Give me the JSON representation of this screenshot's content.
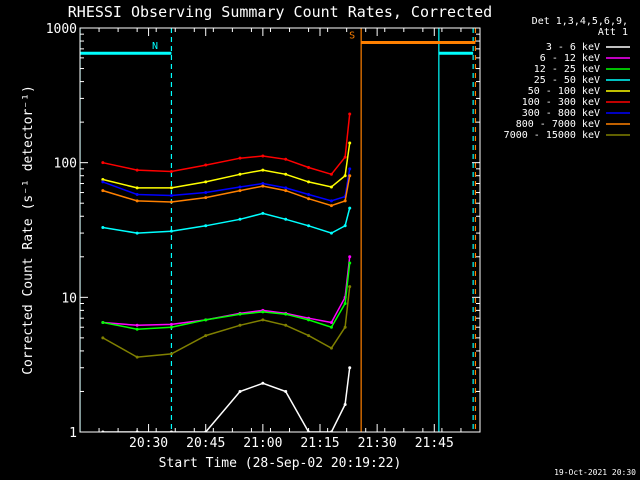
{
  "chart_data": {
    "type": "line",
    "title": "RHESSI Observing Summary Count Rates, Corrected",
    "xlabel": "Start Time (28-Sep-02 20:19:22)",
    "ylabel": "Corrected Count Rate (s⁻¹ detector⁻¹)",
    "yscale": "log",
    "ylim": [
      1,
      1000
    ],
    "xlim_min": [
      20.2,
      21.95
    ],
    "x_ticks": [
      20.5,
      20.75,
      21.0,
      21.25,
      21.5,
      21.75
    ],
    "x_tick_labels": [
      "20:30",
      "20:45",
      "21:00",
      "21:15",
      "21:30",
      "21:45"
    ],
    "y_ticks": [
      1,
      10,
      100,
      1000
    ],
    "y_tick_labels": [
      "1",
      "10",
      "100",
      "1000"
    ],
    "legend_header": [
      "Det 1,3,4,5,6,9,",
      "Att 1"
    ],
    "legend_placement": "right",
    "grid": false,
    "series": [
      {
        "name": "3 - 6 keV",
        "color": "#ffffff",
        "x": [
          20.3,
          20.45,
          20.6,
          20.75,
          20.9,
          21.0,
          21.1,
          21.2,
          21.3,
          21.36,
          21.38
        ],
        "y": [
          1,
          1,
          1,
          1,
          2,
          2.3,
          2,
          1,
          1,
          1.6,
          3
        ]
      },
      {
        "name": "6 - 12 keV",
        "color": "#ff00ff",
        "x": [
          20.3,
          20.45,
          20.6,
          20.75,
          20.9,
          21.0,
          21.1,
          21.2,
          21.3,
          21.36,
          21.38
        ],
        "y": [
          6.5,
          6.2,
          6.3,
          6.8,
          7.6,
          8.0,
          7.6,
          7.0,
          6.5,
          10,
          20
        ]
      },
      {
        "name": "12 - 25 keV",
        "color": "#00ff00",
        "x": [
          20.3,
          20.45,
          20.6,
          20.75,
          20.9,
          21.0,
          21.1,
          21.2,
          21.3,
          21.36,
          21.38
        ],
        "y": [
          6.5,
          5.8,
          6.0,
          6.8,
          7.5,
          7.8,
          7.5,
          6.8,
          6.0,
          9,
          18
        ]
      },
      {
        "name": "25 - 50 keV",
        "color": "#00ffff",
        "x": [
          20.3,
          20.45,
          20.6,
          20.75,
          20.9,
          21.0,
          21.1,
          21.2,
          21.3,
          21.36,
          21.38
        ],
        "y": [
          33,
          30,
          31,
          34,
          38,
          42,
          38,
          34,
          30,
          34,
          46
        ]
      },
      {
        "name": "50 - 100 keV",
        "color": "#ffff00",
        "x": [
          20.3,
          20.45,
          20.6,
          20.75,
          20.9,
          21.0,
          21.1,
          21.2,
          21.3,
          21.36,
          21.38
        ],
        "y": [
          75,
          65,
          65,
          72,
          82,
          88,
          82,
          72,
          66,
          80,
          140
        ]
      },
      {
        "name": "100 - 300 keV",
        "color": "#ff0000",
        "x": [
          20.3,
          20.45,
          20.6,
          20.75,
          20.9,
          21.0,
          21.1,
          21.2,
          21.3,
          21.36,
          21.38
        ],
        "y": [
          100,
          88,
          86,
          96,
          108,
          112,
          106,
          92,
          82,
          110,
          230
        ]
      },
      {
        "name": "300 - 800 keV",
        "color": "#0000ff",
        "x": [
          20.3,
          20.45,
          20.6,
          20.75,
          20.9,
          21.0,
          21.1,
          21.2,
          21.3,
          21.36,
          21.38
        ],
        "y": [
          72,
          58,
          57,
          60,
          66,
          70,
          65,
          58,
          52,
          56,
          90
        ]
      },
      {
        "name": "800 - 7000 keV",
        "color": "#ff8000",
        "x": [
          20.3,
          20.45,
          20.6,
          20.75,
          20.9,
          21.0,
          21.1,
          21.2,
          21.3,
          21.36,
          21.38
        ],
        "y": [
          62,
          52,
          51,
          55,
          62,
          67,
          62,
          54,
          48,
          52,
          80
        ]
      },
      {
        "name": "7000 - 15000 keV",
        "color": "#808000",
        "x": [
          20.3,
          20.45,
          20.6,
          20.75,
          20.9,
          21.0,
          21.1,
          21.2,
          21.3,
          21.36,
          21.38
        ],
        "y": [
          5.0,
          3.6,
          3.8,
          5.2,
          6.2,
          6.8,
          6.2,
          5.2,
          4.2,
          6,
          12
        ]
      }
    ],
    "flags": [
      {
        "label": "N",
        "color": "#00ffff",
        "y": 650,
        "start": 20.2,
        "end": 20.6
      },
      {
        "label": "S",
        "color": "#ff8000",
        "y": 780,
        "start": 21.43,
        "end": 21.93
      },
      {
        "label": "",
        "color": "#00ffff",
        "y": 650,
        "start": 21.77,
        "end": 21.92
      }
    ],
    "vlines": [
      {
        "x": 20.2,
        "color": "#00ffff",
        "style": "solid"
      },
      {
        "x": 20.6,
        "color": "#00ffff",
        "style": "dashed"
      },
      {
        "x": 21.43,
        "color": "#ff8000",
        "style": "solid"
      },
      {
        "x": 21.77,
        "color": "#00ffff",
        "style": "solid"
      },
      {
        "x": 21.92,
        "color": "#00ffff",
        "style": "dashed"
      },
      {
        "x": 21.93,
        "color": "#ff8000",
        "style": "dashed"
      }
    ]
  },
  "footer": {
    "timestamp": "19-Oct-2021 20:30"
  }
}
